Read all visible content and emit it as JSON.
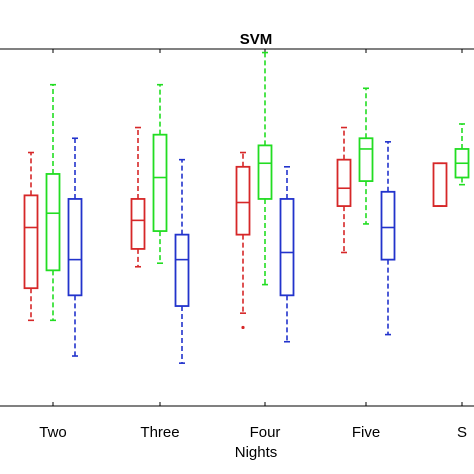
{
  "chart_data": {
    "type": "box",
    "title": "SVM",
    "xlabel": "Nights",
    "ylabel": "",
    "categories": [
      "Two",
      "Three",
      "Four",
      "Five",
      "S"
    ],
    "ylim": [
      0,
      1
    ],
    "grid": false,
    "series": [
      {
        "color": "#d62728",
        "boxes": [
          {
            "category": "Two",
            "whisker_low": 0.24,
            "q1": 0.33,
            "median": 0.5,
            "q3": 0.59,
            "whisker_high": 0.71
          },
          {
            "category": "Three",
            "whisker_low": 0.39,
            "q1": 0.44,
            "median": 0.52,
            "q3": 0.58,
            "whisker_high": 0.78
          },
          {
            "category": "Four",
            "whisker_low": 0.26,
            "q1": 0.48,
            "median": 0.57,
            "q3": 0.67,
            "whisker_high": 0.71,
            "outliers": [
              0.22
            ]
          },
          {
            "category": "Five",
            "whisker_low": 0.43,
            "q1": 0.56,
            "median": 0.61,
            "q3": 0.69,
            "whisker_high": 0.78
          },
          {
            "category": "S",
            "whisker_low": 0.56,
            "q1": 0.56,
            "median": 0.56,
            "q3": 0.68,
            "whisker_high": 0.68
          }
        ]
      },
      {
        "color": "#22dd22",
        "boxes": [
          {
            "category": "Two",
            "whisker_low": 0.24,
            "q1": 0.38,
            "median": 0.54,
            "q3": 0.65,
            "whisker_high": 0.9
          },
          {
            "category": "Three",
            "whisker_low": 0.4,
            "q1": 0.49,
            "median": 0.64,
            "q3": 0.76,
            "whisker_high": 0.9
          },
          {
            "category": "Four",
            "whisker_low": 0.34,
            "q1": 0.58,
            "median": 0.68,
            "q3": 0.73,
            "whisker_high": 0.99
          },
          {
            "category": "Five",
            "whisker_low": 0.51,
            "q1": 0.63,
            "median": 0.72,
            "q3": 0.75,
            "whisker_high": 0.89
          },
          {
            "category": "S",
            "whisker_low": 0.62,
            "q1": 0.64,
            "median": 0.68,
            "q3": 0.72,
            "whisker_high": 0.79
          }
        ]
      },
      {
        "color": "#2233cc",
        "boxes": [
          {
            "category": "Two",
            "whisker_low": 0.14,
            "q1": 0.31,
            "median": 0.41,
            "q3": 0.58,
            "whisker_high": 0.75
          },
          {
            "category": "Three",
            "whisker_low": 0.12,
            "q1": 0.28,
            "median": 0.41,
            "q3": 0.48,
            "whisker_high": 0.69
          },
          {
            "category": "Four",
            "whisker_low": 0.18,
            "q1": 0.31,
            "median": 0.43,
            "q3": 0.58,
            "whisker_high": 0.67
          },
          {
            "category": "Five",
            "whisker_low": 0.2,
            "q1": 0.41,
            "median": 0.5,
            "q3": 0.6,
            "whisker_high": 0.74
          }
        ]
      }
    ]
  }
}
